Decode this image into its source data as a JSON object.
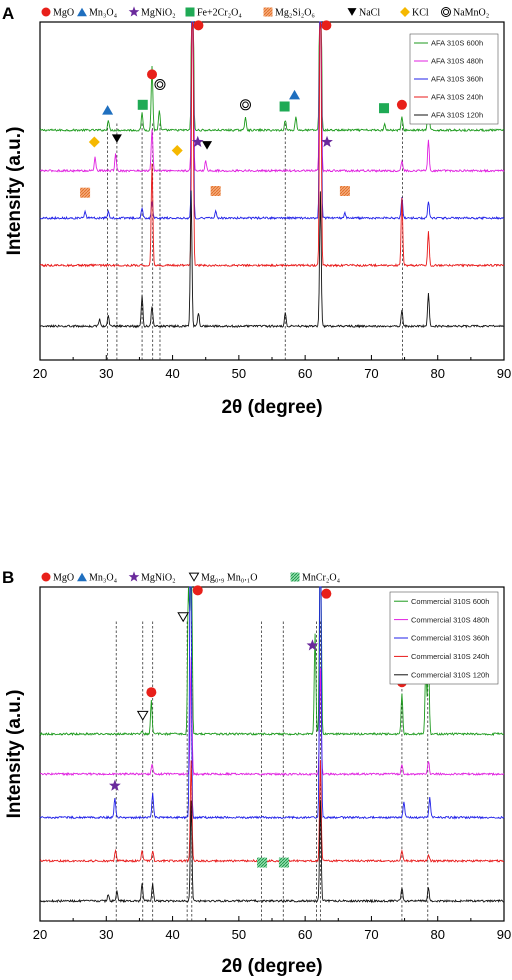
{
  "chart_data": [
    {
      "panel": "A",
      "type": "line",
      "xlabel": "2θ (degree)",
      "ylabel": "Intensity (a.u.)",
      "xlim": [
        20,
        90
      ],
      "xticks": [
        20,
        30,
        40,
        50,
        60,
        70,
        80,
        90
      ],
      "phase_legend": [
        {
          "label": "MgO",
          "marker": "circle",
          "color": "#e8201a"
        },
        {
          "label": "Mn₃O₄",
          "marker": "triangle",
          "color": "#1f6fbf"
        },
        {
          "label": "MgNiO₂",
          "marker": "star",
          "color": "#6a2a9c"
        },
        {
          "label": "Fe+2Cr₂O₄",
          "marker": "square",
          "color": "#1faa55"
        },
        {
          "label": "Mg₂Si₂O₆",
          "marker": "hatch-square",
          "color": "#f08a40"
        },
        {
          "label": "NaCl",
          "marker": "down-triangle",
          "color": "#000000"
        },
        {
          "label": "KCl",
          "marker": "diamond",
          "color": "#f5b800"
        },
        {
          "label": "NaMnO₂",
          "marker": "double-circle",
          "color": "#000000"
        }
      ],
      "series": [
        {
          "name": "AFA 310S 600h",
          "color": "#1c9a1c",
          "baseline": 0.68,
          "peaks": [
            [
              30.3,
              0.03
            ],
            [
              35.4,
              0.05
            ],
            [
              36.9,
              0.19
            ],
            [
              38.0,
              0.06
            ],
            [
              43.0,
              0.98
            ],
            [
              51.0,
              0.04
            ],
            [
              57.0,
              0.03
            ],
            [
              58.6,
              0.04
            ],
            [
              62.3,
              0.98
            ],
            [
              72.0,
              0.02
            ],
            [
              74.6,
              0.04
            ],
            [
              78.6,
              0.1
            ]
          ]
        },
        {
          "name": "AFA 310S 480h",
          "color": "#e020e0",
          "baseline": 0.56,
          "peaks": [
            [
              28.3,
              0.04
            ],
            [
              31.4,
              0.05
            ],
            [
              36.9,
              0.12
            ],
            [
              43.0,
              0.98
            ],
            [
              45.0,
              0.03
            ],
            [
              62.3,
              0.98
            ],
            [
              74.6,
              0.03
            ],
            [
              78.6,
              0.09
            ]
          ]
        },
        {
          "name": "AFA 310S 360h",
          "color": "#2020e8",
          "baseline": 0.42,
          "peaks": [
            [
              26.8,
              0.02
            ],
            [
              30.3,
              0.02
            ],
            [
              35.4,
              0.03
            ],
            [
              36.9,
              0.05
            ],
            [
              43.0,
              0.98
            ],
            [
              46.5,
              0.02
            ],
            [
              62.3,
              0.98
            ],
            [
              66.0,
              0.015
            ],
            [
              74.6,
              0.06
            ],
            [
              78.6,
              0.05
            ]
          ]
        },
        {
          "name": "AFA 310S 240h",
          "color": "#e81818",
          "baseline": 0.28,
          "peaks": [
            [
              36.9,
              0.3
            ],
            [
              43.0,
              0.98
            ],
            [
              62.3,
              0.98
            ],
            [
              74.6,
              0.2
            ],
            [
              78.6,
              0.1
            ]
          ]
        },
        {
          "name": "AFA 310S 120h",
          "color": "#111111",
          "baseline": 0.1,
          "peaks": [
            [
              29.0,
              0.02
            ],
            [
              30.3,
              0.03
            ],
            [
              35.4,
              0.09
            ],
            [
              36.9,
              0.06
            ],
            [
              42.8,
              0.4
            ],
            [
              43.9,
              0.04
            ],
            [
              57.0,
              0.04
            ],
            [
              62.3,
              0.4
            ],
            [
              74.6,
              0.05
            ],
            [
              78.6,
              0.1
            ]
          ]
        }
      ],
      "annotations": [
        {
          "marker": "circle",
          "x": 43.9,
          "y": 0.99
        },
        {
          "marker": "circle",
          "x": 63.2,
          "y": 0.99
        },
        {
          "marker": "circle",
          "x": 36.9,
          "y": 0.845
        },
        {
          "marker": "circle",
          "x": 74.6,
          "y": 0.755
        },
        {
          "marker": "circle",
          "x": 78.8,
          "y": 0.8
        },
        {
          "marker": "double-circle",
          "x": 38.1,
          "y": 0.815
        },
        {
          "marker": "double-circle",
          "x": 51.0,
          "y": 0.755
        },
        {
          "marker": "triangle",
          "x": 30.2,
          "y": 0.74
        },
        {
          "marker": "triangle",
          "x": 58.4,
          "y": 0.785
        },
        {
          "marker": "square",
          "x": 35.5,
          "y": 0.755
        },
        {
          "marker": "square",
          "x": 56.9,
          "y": 0.75
        },
        {
          "marker": "square",
          "x": 71.9,
          "y": 0.745
        },
        {
          "marker": "diamond",
          "x": 28.2,
          "y": 0.645
        },
        {
          "marker": "diamond",
          "x": 40.7,
          "y": 0.62
        },
        {
          "marker": "down-triangle",
          "x": 31.6,
          "y": 0.655
        },
        {
          "marker": "down-triangle",
          "x": 45.2,
          "y": 0.635
        },
        {
          "marker": "star",
          "x": 43.8,
          "y": 0.645
        },
        {
          "marker": "star",
          "x": 63.3,
          "y": 0.645
        },
        {
          "marker": "hatch-square",
          "x": 26.8,
          "y": 0.495
        },
        {
          "marker": "hatch-square",
          "x": 46.5,
          "y": 0.5
        },
        {
          "marker": "hatch-square",
          "x": 66.0,
          "y": 0.5
        }
      ],
      "reference_lines": [
        30.2,
        31.6,
        35.4,
        37.0,
        38.1,
        57.0,
        74.7
      ]
    },
    {
      "panel": "B",
      "type": "line",
      "xlabel": "2θ (degree)",
      "ylabel": "Intensity (a.u.)",
      "xlim": [
        20,
        90
      ],
      "xticks": [
        20,
        30,
        40,
        50,
        60,
        70,
        80,
        90
      ],
      "phase_legend": [
        {
          "label": "MgO",
          "marker": "circle",
          "color": "#e8201a"
        },
        {
          "label": "Mn₃O₄",
          "marker": "triangle",
          "color": "#1f6fbf"
        },
        {
          "label": "MgNiO₂",
          "marker": "star",
          "color": "#6a2a9c"
        },
        {
          "label": "Mg₀.₉ Mn₀.₁O",
          "marker": "open-down-triangle",
          "color": "#000000"
        },
        {
          "label": "MnCr₂O₄",
          "marker": "hatch-square",
          "color": "#1faa55"
        }
      ],
      "series": [
        {
          "name": "Commercial 310S 600h",
          "color": "#1c9a1c",
          "baseline": 0.56,
          "peaks": [
            [
              35.4,
              0.01
            ],
            [
              36.8,
              0.1
            ],
            [
              42.4,
              0.5
            ],
            [
              42.8,
              0.98
            ],
            [
              61.5,
              0.3
            ],
            [
              62.3,
              0.98
            ],
            [
              74.6,
              0.12
            ],
            [
              78.2,
              0.2
            ],
            [
              78.6,
              0.25
            ]
          ]
        },
        {
          "name": "Commercial 310S 480h",
          "color": "#e020e0",
          "baseline": 0.44,
          "peaks": [
            [
              36.9,
              0.03
            ],
            [
              42.8,
              0.35
            ],
            [
              62.3,
              0.32
            ],
            [
              74.6,
              0.03
            ],
            [
              78.6,
              0.04
            ]
          ]
        },
        {
          "name": "Commercial 310S 360h",
          "color": "#2020e8",
          "baseline": 0.31,
          "peaks": [
            [
              31.3,
              0.06
            ],
            [
              37.0,
              0.07
            ],
            [
              42.7,
              0.98
            ],
            [
              62.3,
              0.98
            ],
            [
              74.9,
              0.05
            ],
            [
              78.8,
              0.06
            ]
          ]
        },
        {
          "name": "Commercial 310S 240h",
          "color": "#e81818",
          "baseline": 0.18,
          "peaks": [
            [
              31.4,
              0.03
            ],
            [
              35.4,
              0.03
            ],
            [
              37.0,
              0.03
            ],
            [
              42.8,
              0.3
            ],
            [
              62.3,
              0.3
            ],
            [
              74.6,
              0.03
            ],
            [
              78.6,
              0.02
            ]
          ]
        },
        {
          "name": "Commercial 310S 120h",
          "color": "#111111",
          "baseline": 0.06,
          "peaks": [
            [
              30.3,
              0.02
            ],
            [
              31.6,
              0.03
            ],
            [
              35.4,
              0.05
            ],
            [
              37.0,
              0.05
            ],
            [
              42.8,
              0.3
            ],
            [
              62.3,
              0.3
            ],
            [
              74.6,
              0.04
            ],
            [
              78.6,
              0.04
            ]
          ]
        }
      ],
      "annotations": [
        {
          "marker": "circle",
          "x": 43.8,
          "y": 0.99
        },
        {
          "marker": "circle",
          "x": 63.2,
          "y": 0.98
        },
        {
          "marker": "circle",
          "x": 36.8,
          "y": 0.685
        },
        {
          "marker": "circle",
          "x": 74.6,
          "y": 0.715
        },
        {
          "marker": "circle",
          "x": 79.2,
          "y": 0.82
        },
        {
          "marker": "open-down-triangle",
          "x": 41.6,
          "y": 0.91
        },
        {
          "marker": "open-down-triangle",
          "x": 35.5,
          "y": 0.615
        },
        {
          "marker": "star",
          "x": 61.1,
          "y": 0.825
        },
        {
          "marker": "star",
          "x": 31.3,
          "y": 0.405
        },
        {
          "marker": "hatch-square",
          "x": 53.5,
          "y": 0.175
        },
        {
          "marker": "hatch-square",
          "x": 56.8,
          "y": 0.175
        }
      ],
      "reference_lines": [
        31.5,
        35.5,
        37.0,
        42.2,
        42.9,
        53.4,
        56.7,
        61.7,
        62.3,
        74.6,
        78.5
      ]
    }
  ],
  "panels": {
    "A": {
      "letter": "A",
      "xlabel": "2θ (degree)",
      "ylabel": "Intensity (a.u.)"
    },
    "B": {
      "letter": "B",
      "xlabel": "2θ (degree)",
      "ylabel": "Intensity (a.u.)"
    }
  }
}
